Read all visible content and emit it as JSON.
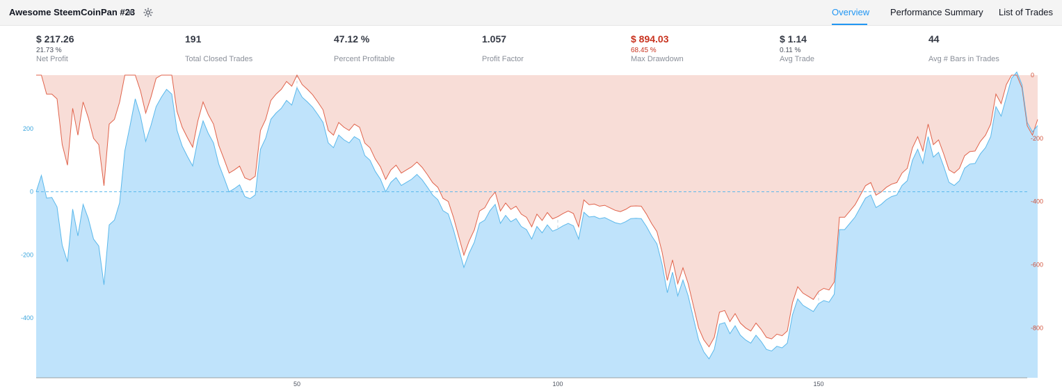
{
  "header": {
    "strategy_name": "Awesome SteemCoinPan #23",
    "tabs": [
      {
        "label": "Overview",
        "active": true
      },
      {
        "label": "Performance Summary",
        "active": false
      },
      {
        "label": "List of Trades",
        "active": false
      }
    ]
  },
  "stats": [
    {
      "value": "$ 217.26",
      "percent": "21.73 %",
      "label": "Net Profit"
    },
    {
      "value": "191",
      "percent": "",
      "label": "Total Closed Trades"
    },
    {
      "value": "47.12 %",
      "percent": "",
      "label": "Percent Profitable"
    },
    {
      "value": "1.057",
      "percent": "",
      "label": "Profit Factor"
    },
    {
      "value": "$ 894.03",
      "percent": "68.45 %",
      "label": "Max Drawdown"
    },
    {
      "value": "$ 1.14",
      "percent": "0.11 %",
      "label": "Avg Trade"
    },
    {
      "value": "44",
      "percent": "",
      "label": "Avg # Bars in Trades"
    }
  ],
  "colors": {
    "equity_line": "#5ab8eb",
    "equity_fill": "#bfe3fb",
    "drawdown_line": "#e0624a",
    "drawdown_fill": "#f8ddd7",
    "accent": "#2196f3",
    "max_drawdown_text": "#c8321e"
  },
  "chart_data": {
    "type": "area",
    "xlim": [
      0,
      190
    ],
    "x_ticks": [
      50,
      100,
      150
    ],
    "equity_axis": {
      "side": "left",
      "ylim": [
        -590,
        370
      ],
      "ticks": [
        200,
        0,
        -200,
        -400
      ]
    },
    "drawdown_axis": {
      "side": "right",
      "ylim": [
        -958,
        0
      ],
      "ticks": [
        0,
        -200,
        -400,
        -600,
        -800
      ]
    },
    "zero_line": true,
    "series": [
      {
        "axis": "left",
        "values": [
          0,
          52,
          -20,
          -18,
          -48,
          -170,
          -222,
          -55,
          -140,
          -40,
          -85,
          -150,
          -172,
          -295,
          -105,
          -90,
          -35,
          130,
          210,
          295,
          240,
          160,
          210,
          270,
          300,
          325,
          310,
          195,
          145,
          112,
          82,
          165,
          225,
          185,
          155,
          88,
          45,
          0,
          10,
          22,
          -15,
          -22,
          -10,
          135,
          170,
          230,
          250,
          265,
          290,
          275,
          330,
          300,
          285,
          268,
          245,
          220,
          155,
          140,
          180,
          165,
          155,
          175,
          165,
          115,
          100,
          65,
          40,
          0,
          30,
          45,
          20,
          30,
          40,
          55,
          38,
          15,
          -10,
          -25,
          -60,
          -70,
          -120,
          -180,
          -240,
          -195,
          -160,
          -100,
          -90,
          -60,
          -40,
          -100,
          -75,
          -95,
          -85,
          -110,
          -120,
          -150,
          -110,
          -130,
          -105,
          -125,
          -118,
          -108,
          -100,
          -108,
          -150,
          -65,
          -80,
          -78,
          -85,
          -82,
          -90,
          -98,
          -102,
          -95,
          -85,
          -84,
          -85,
          -110,
          -140,
          -165,
          -230,
          -320,
          -255,
          -330,
          -280,
          -330,
          -400,
          -470,
          -508,
          -530,
          -500,
          -420,
          -415,
          -450,
          -425,
          -455,
          -470,
          -480,
          -455,
          -475,
          -500,
          -505,
          -490,
          -495,
          -480,
          -390,
          -340,
          -360,
          -370,
          -380,
          -355,
          -345,
          -350,
          -325,
          -120,
          -120,
          -100,
          -80,
          -50,
          -20,
          -10,
          -50,
          -40,
          -25,
          -15,
          -10,
          20,
          35,
          100,
          135,
          90,
          175,
          110,
          125,
          80,
          30,
          20,
          35,
          75,
          88,
          90,
          120,
          140,
          175,
          270,
          240,
          300,
          360,
          380,
          340,
          220,
          190,
          210
        ]
      },
      {
        "axis": "right",
        "values": [
          0,
          0,
          -60,
          -60,
          -75,
          -220,
          -285,
          -105,
          -190,
          -85,
          -135,
          -200,
          -220,
          -350,
          -155,
          -140,
          -85,
          0,
          0,
          0,
          -50,
          -120,
          -70,
          -10,
          0,
          0,
          0,
          -115,
          -165,
          -198,
          -228,
          -145,
          -85,
          -125,
          -155,
          -222,
          -265,
          -310,
          -300,
          -288,
          -325,
          -332,
          -320,
          -175,
          -140,
          -80,
          -60,
          -45,
          -20,
          -35,
          0,
          -30,
          -45,
          -62,
          -85,
          -110,
          -175,
          -190,
          -150,
          -165,
          -175,
          -155,
          -165,
          -215,
          -230,
          -265,
          -290,
          -330,
          -300,
          -285,
          -310,
          -300,
          -290,
          -275,
          -292,
          -315,
          -340,
          -355,
          -390,
          -400,
          -450,
          -510,
          -570,
          -525,
          -490,
          -430,
          -420,
          -390,
          -370,
          -430,
          -405,
          -425,
          -415,
          -440,
          -450,
          -480,
          -440,
          -460,
          -435,
          -455,
          -448,
          -438,
          -430,
          -438,
          -480,
          -395,
          -410,
          -408,
          -415,
          -412,
          -420,
          -428,
          -432,
          -425,
          -415,
          -414,
          -415,
          -440,
          -470,
          -495,
          -560,
          -650,
          -585,
          -660,
          -610,
          -660,
          -730,
          -800,
          -838,
          -860,
          -830,
          -750,
          -745,
          -780,
          -755,
          -785,
          -800,
          -810,
          -785,
          -805,
          -830,
          -835,
          -820,
          -825,
          -810,
          -720,
          -670,
          -690,
          -700,
          -710,
          -685,
          -675,
          -680,
          -655,
          -450,
          -450,
          -430,
          -410,
          -380,
          -350,
          -340,
          -380,
          -370,
          -355,
          -345,
          -340,
          -310,
          -295,
          -230,
          -195,
          -240,
          -155,
          -220,
          -205,
          -250,
          -300,
          -310,
          -295,
          -255,
          -242,
          -240,
          -210,
          -190,
          -155,
          -60,
          -90,
          -30,
          0,
          0,
          -40,
          -160,
          -190,
          -140
        ]
      }
    ]
  }
}
